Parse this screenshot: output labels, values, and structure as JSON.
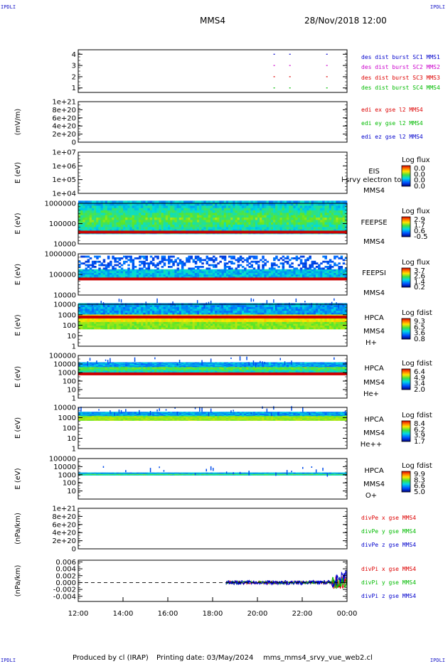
{
  "header": {
    "left_corner": "IPDLI",
    "right_corner": "IPDLI",
    "spacecraft": "MMS4",
    "datetime": "28/Nov/2018 12:00"
  },
  "footer": {
    "left_corner": "IPDLI",
    "right_corner": "IPDLI",
    "produced_by": "Produced by cl (IRAP)",
    "printing_date": "Printing date: 03/May/2024",
    "script": "mms_mms4_srvy_vue_web2.cl"
  },
  "chart_data": {
    "type": "line",
    "x_ticks": [
      "12:00",
      "14:00",
      "16:00",
      "18:00",
      "20:00",
      "22:00",
      "00:00"
    ],
    "x_range_hours": [
      12,
      24
    ],
    "panels": [
      {
        "id": "burst",
        "kind": "burst",
        "ylabel": "",
        "y_ticks": [
          "1",
          "2",
          "3",
          "4"
        ],
        "ylim": [
          0.6,
          4.4
        ],
        "legend": [
          {
            "label": "des dist burst SC1 MMS1",
            "color": "#0000cc"
          },
          {
            "label": "des dist burst SC2 MMS2",
            "color": "#cc00cc"
          },
          {
            "label": "des dist burst SC3 MMS3",
            "color": "#dd0000"
          },
          {
            "label": "des dist burst SC4 MMS4",
            "color": "#00bb00"
          }
        ],
        "burst_times": [
          20.75,
          21.45,
          23.1
        ]
      },
      {
        "id": "edi",
        "kind": "line",
        "ylabel": "(mV/m)",
        "y_ticks": [
          "0",
          "2e+20",
          "4e+20",
          "6e+20",
          "8e+20",
          "1e+21"
        ],
        "ylim": [
          0,
          1e+21
        ],
        "zero_line": true,
        "legend": [
          {
            "label": "edi ex gse l2 MMS4",
            "color": "#dd0000"
          },
          {
            "label": "edi ey gse l2 MMS4",
            "color": "#00bb00"
          },
          {
            "label": "edi ez gse l2 MMS4",
            "color": "#0000cc"
          }
        ]
      },
      {
        "id": "eis",
        "kind": "spectrogram",
        "ylabel": "E (eV)",
        "y_ticks": [
          "1e+04",
          "1e+05",
          "1e+06",
          "1e+07"
        ],
        "ylim": [
          10000.0,
          10000000.0
        ],
        "side_labels": [
          "EIS",
          "MMS4"
        ],
        "overlay_text": "l srvy electron to",
        "colorbar": {
          "title": "Log flux",
          "values": [
            "0.0",
            "0.0",
            "0.0",
            "0.0"
          ]
        },
        "band": null
      },
      {
        "id": "feepse",
        "kind": "spectrogram",
        "ylabel": "E (eV)",
        "y_ticks": [
          "10000",
          "100000",
          "1000000"
        ],
        "ylim": [
          10000.0,
          1000000.0
        ],
        "side_labels": [
          "FEEPSE",
          "MMS4"
        ],
        "colorbar": {
          "title": "Log flux",
          "values": [
            "2.9",
            "1.7",
            "0.6",
            "-0.5"
          ]
        },
        "band": {
          "from": 30000,
          "to": 1000000,
          "red_level": 38000,
          "sparse_top": false,
          "start_hour": 12
        }
      },
      {
        "id": "feepsi",
        "kind": "spectrogram",
        "ylabel": "E (eV)",
        "y_ticks": [
          "10000",
          "100000",
          "1000000"
        ],
        "ylim": [
          10000.0,
          1000000.0
        ],
        "side_labels": [
          "FEEPSI",
          "MMS4"
        ],
        "colorbar": {
          "title": "Log flux",
          "values": [
            "3.7",
            "2.6",
            "1.4",
            "0.2"
          ]
        },
        "band": {
          "from": 55000,
          "to": 650000,
          "red_level": 60000,
          "sparse_top": true,
          "start_hour": 12
        }
      },
      {
        "id": "hpca_h",
        "kind": "spectrogram",
        "ylabel": "E (eV)",
        "y_ticks": [
          "1",
          "10",
          "100",
          "1000",
          "10000"
        ],
        "ylim": [
          1,
          10000
        ],
        "side_labels": [
          "HPCA",
          "MMS4",
          "H+"
        ],
        "colorbar": {
          "title": "Log fdist",
          "values": [
            "9.3",
            "6.5",
            "3.6",
            "0.8"
          ]
        },
        "band": {
          "from": 40,
          "to": 8000,
          "red_level": 600,
          "sparse_top": false,
          "start_hour": 12
        }
      },
      {
        "id": "hpca_he",
        "kind": "spectrogram",
        "ylabel": "E (eV)",
        "y_ticks": [
          "1",
          "10",
          "100",
          "1000",
          "10000",
          "100000"
        ],
        "ylim": [
          1,
          100000
        ],
        "side_labels": [
          "HPCA",
          "MMS4",
          "He+"
        ],
        "colorbar": {
          "title": "Log fdist",
          "values": [
            "6.4",
            "4.9",
            "3.4",
            "2.0"
          ]
        },
        "band": {
          "from": 900,
          "to": 12000,
          "red_level": 700,
          "sparse_top": false,
          "start_hour": 12
        }
      },
      {
        "id": "hpca_hepp",
        "kind": "spectrogram",
        "ylabel": "E (eV)",
        "y_ticks": [
          "1",
          "10",
          "100",
          "1000",
          "10000"
        ],
        "ylim": [
          1,
          10000
        ],
        "side_labels": [
          "HPCA",
          "MMS4",
          "He++"
        ],
        "colorbar": {
          "title": "Log fdist",
          "values": [
            "8.4",
            "6.2",
            "3.9",
            "1.7"
          ]
        },
        "band": {
          "from": 500,
          "to": 3000,
          "red_level": null,
          "sparse_top": false,
          "start_hour": 12
        }
      },
      {
        "id": "hpca_o",
        "kind": "spectrogram",
        "ylabel": "E (eV)",
        "y_ticks": [
          "10",
          "100",
          "1000",
          "10000",
          "100000"
        ],
        "ylim": [
          1,
          100000
        ],
        "side_labels": [
          "HPCA",
          "MMS4",
          "O+"
        ],
        "colorbar": {
          "title": "Log fdist",
          "values": [
            "9.9",
            "8.3",
            "6.6",
            "5.0"
          ]
        },
        "band": {
          "from": 800,
          "to": 1600,
          "red_level": null,
          "sparse_top": false,
          "start_hour": 12
        }
      },
      {
        "id": "divpe",
        "kind": "line",
        "ylabel": "(nPa/km)",
        "y_ticks": [
          "0",
          "2e+20",
          "4e+20",
          "6e+20",
          "8e+20",
          "1e+21"
        ],
        "ylim": [
          0,
          1e+21
        ],
        "zero_line": true,
        "legend": [
          {
            "label": "divPe x gse MMS4",
            "color": "#dd0000"
          },
          {
            "label": "divPe y gse MMS4",
            "color": "#00bb00"
          },
          {
            "label": "divPe z gse MMS4",
            "color": "#0000cc"
          }
        ]
      },
      {
        "id": "divpi",
        "kind": "line",
        "ylabel": "(nPa/km)",
        "y_ticks": [
          "-0.004",
          "-0.002",
          "0.000",
          "0.002",
          "0.004",
          "0.006"
        ],
        "ylim": [
          -0.0055,
          0.0065
        ],
        "zero_line": true,
        "legend": [
          {
            "label": "divPi x gse MMS4",
            "color": "#dd0000"
          },
          {
            "label": "divPi y gse MMS4",
            "color": "#00bb00"
          },
          {
            "label": "divPi z gse MMS4",
            "color": "#0000cc"
          }
        ],
        "series_start_hour": 18.6
      }
    ]
  }
}
